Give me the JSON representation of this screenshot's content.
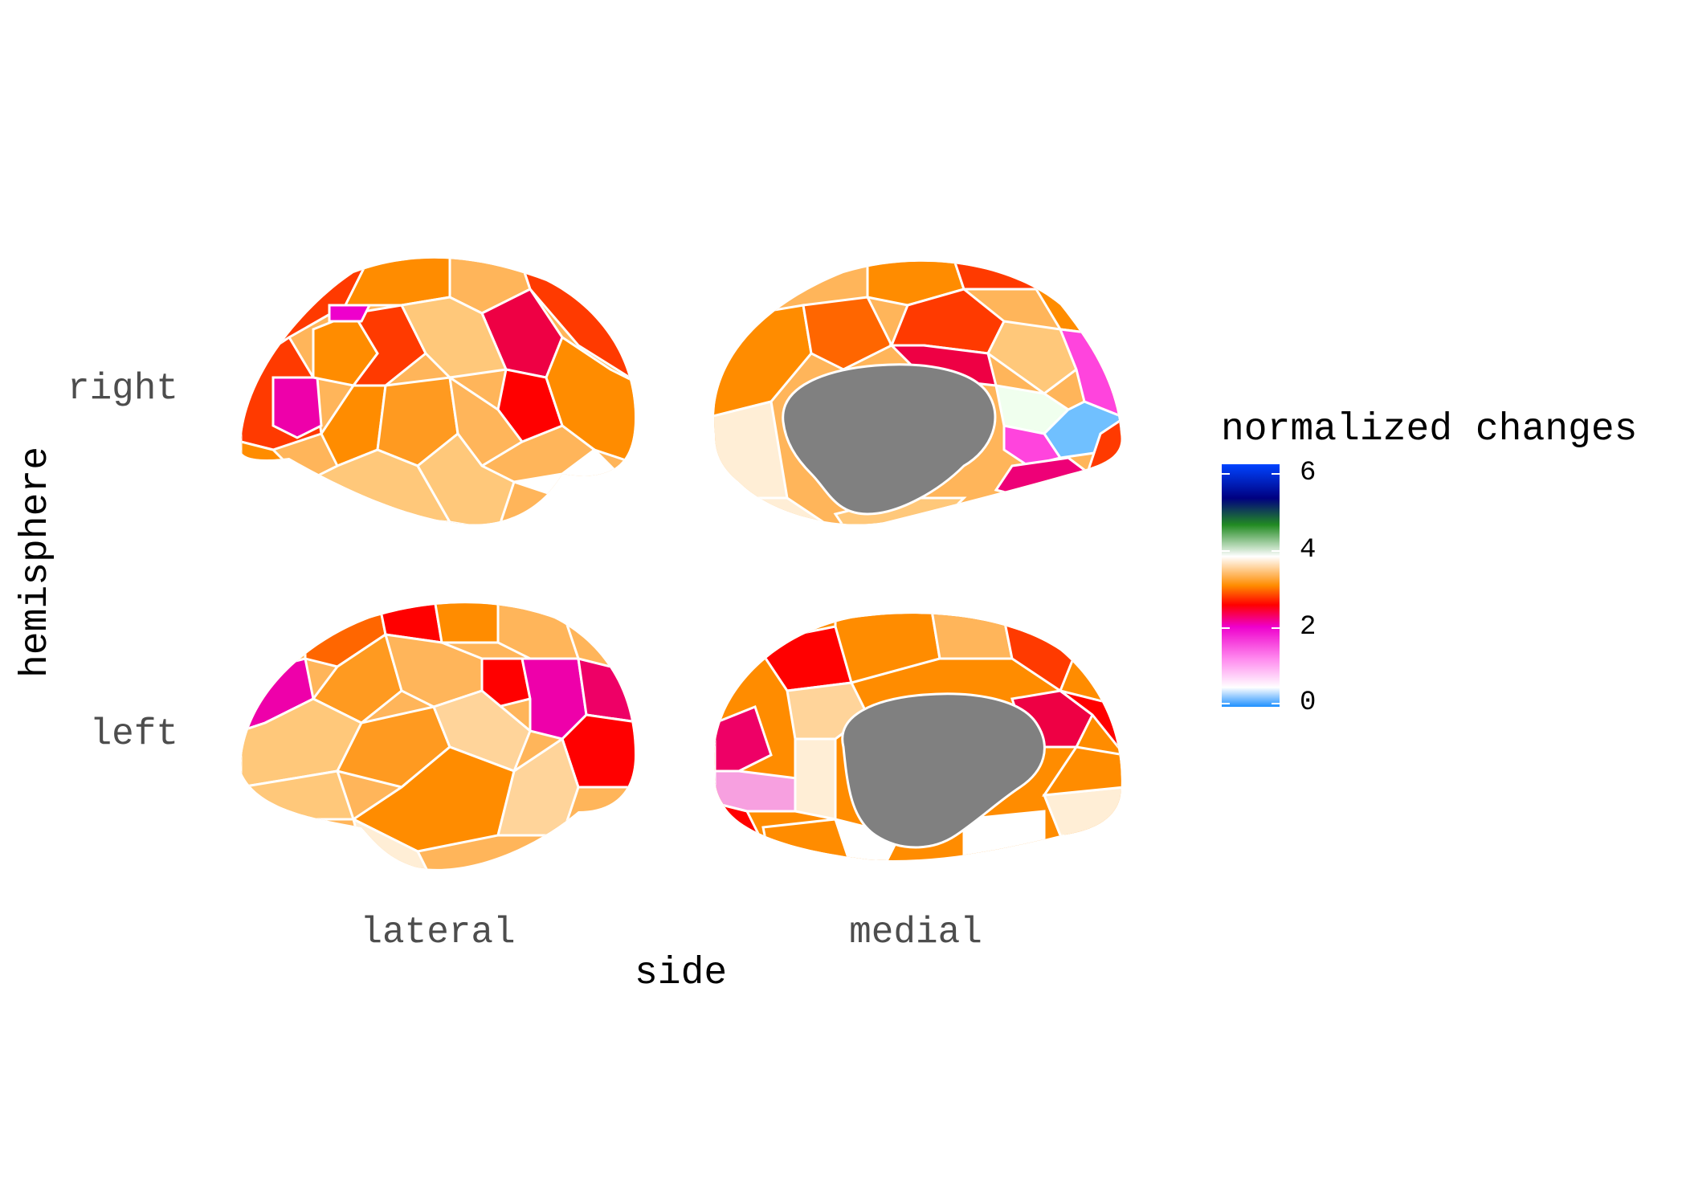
{
  "figure": {
    "y_axis_title": "hemisphere",
    "x_axis_title": "side",
    "row_labels": [
      "right",
      "left"
    ],
    "column_labels": [
      "lateral",
      "medial"
    ]
  },
  "legend": {
    "title": "normalized changes",
    "ticks": [
      "6",
      "4",
      "2",
      "0"
    ],
    "colors": {
      "0": "#1e90ff",
      "1": "#ffffff",
      "2": "#ee00cc",
      "2.5": "#ff0000",
      "3": "#ff8c00",
      "4": "#ffffff",
      "5": "#228b22",
      "5.5": "#000080",
      "6": "#0044ff"
    }
  },
  "region_colors": {
    "medial_wall": "#808080",
    "orange": "#ff8c00",
    "light_orange": "#ffb55a",
    "peach": "#ffd49a",
    "cream": "#ffeed6",
    "red": "#ff0000",
    "red_orange": "#ff3a00",
    "magenta": "#ee00aa",
    "crimson": "#ee0044",
    "pink": "#ff44dd",
    "light_pink": "#f7a0e0",
    "light_blue": "#70c0ff"
  }
}
